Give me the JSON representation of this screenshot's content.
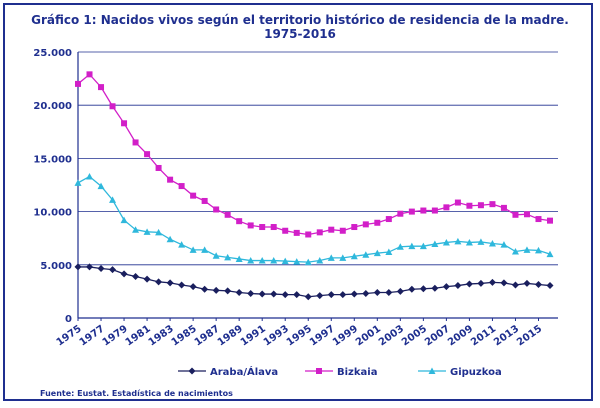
{
  "chart_data": {
    "type": "line",
    "title": "Gráfico 1: Nacidos vivos según el territorio histórico de residencia de la madre.",
    "subtitle": "1975-2016",
    "xlabel": "",
    "ylabel": "",
    "ylim": [
      0,
      25000
    ],
    "yticks": [
      "0",
      "5.000",
      "10.000",
      "15.000",
      "20.000",
      "25.000"
    ],
    "xticks": [
      "1975",
      "1977",
      "1979",
      "1981",
      "1983",
      "1985",
      "1987",
      "1989",
      "1991",
      "1993",
      "1995",
      "1997",
      "1999",
      "2001",
      "2003",
      "2005",
      "2007",
      "2009",
      "2011",
      "2013",
      "2015"
    ],
    "grid": true,
    "legend_position": "bottom",
    "x": [
      1975,
      1976,
      1977,
      1978,
      1979,
      1980,
      1981,
      1982,
      1983,
      1984,
      1985,
      1986,
      1987,
      1988,
      1989,
      1990,
      1991,
      1992,
      1993,
      1994,
      1995,
      1996,
      1997,
      1998,
      1999,
      2000,
      2001,
      2002,
      2003,
      2004,
      2005,
      2006,
      2007,
      2008,
      2009,
      2010,
      2011,
      2012,
      2013,
      2014,
      2015,
      2016
    ],
    "series": [
      {
        "name": "Araba/Álava",
        "color": "#1a1f5e",
        "marker": "diamond",
        "values": [
          4800,
          4800,
          4650,
          4550,
          4150,
          3900,
          3650,
          3400,
          3300,
          3100,
          2950,
          2700,
          2600,
          2550,
          2400,
          2300,
          2250,
          2250,
          2200,
          2200,
          2000,
          2100,
          2200,
          2200,
          2250,
          2300,
          2400,
          2400,
          2500,
          2700,
          2750,
          2800,
          2950,
          3050,
          3200,
          3250,
          3350,
          3300,
          3100,
          3250,
          3150,
          3050
        ]
      },
      {
        "name": "Bizkaia",
        "color": "#d21fc8",
        "marker": "square",
        "values": [
          22000,
          22900,
          21700,
          19900,
          18300,
          16500,
          15400,
          14100,
          13000,
          12400,
          11500,
          11000,
          10200,
          9700,
          9100,
          8700,
          8550,
          8550,
          8200,
          8000,
          7850,
          8050,
          8300,
          8200,
          8550,
          8800,
          8950,
          9300,
          9800,
          10000,
          10100,
          10100,
          10400,
          10850,
          10550,
          10600,
          10700,
          10350,
          9700,
          9750,
          9300,
          9150
        ]
      },
      {
        "name": "Gipuzkoa",
        "color": "#2fb8dc",
        "marker": "triangle",
        "values": [
          12700,
          13300,
          12400,
          11100,
          9200,
          8300,
          8100,
          8050,
          7400,
          6900,
          6400,
          6400,
          5850,
          5700,
          5550,
          5400,
          5400,
          5400,
          5350,
          5300,
          5250,
          5400,
          5650,
          5650,
          5800,
          5950,
          6100,
          6200,
          6700,
          6750,
          6750,
          6950,
          7100,
          7200,
          7100,
          7150,
          7000,
          6900,
          6250,
          6400,
          6350,
          6000
        ]
      }
    ]
  },
  "source": "Fuente: Eustat. Estadística de nacimientos"
}
